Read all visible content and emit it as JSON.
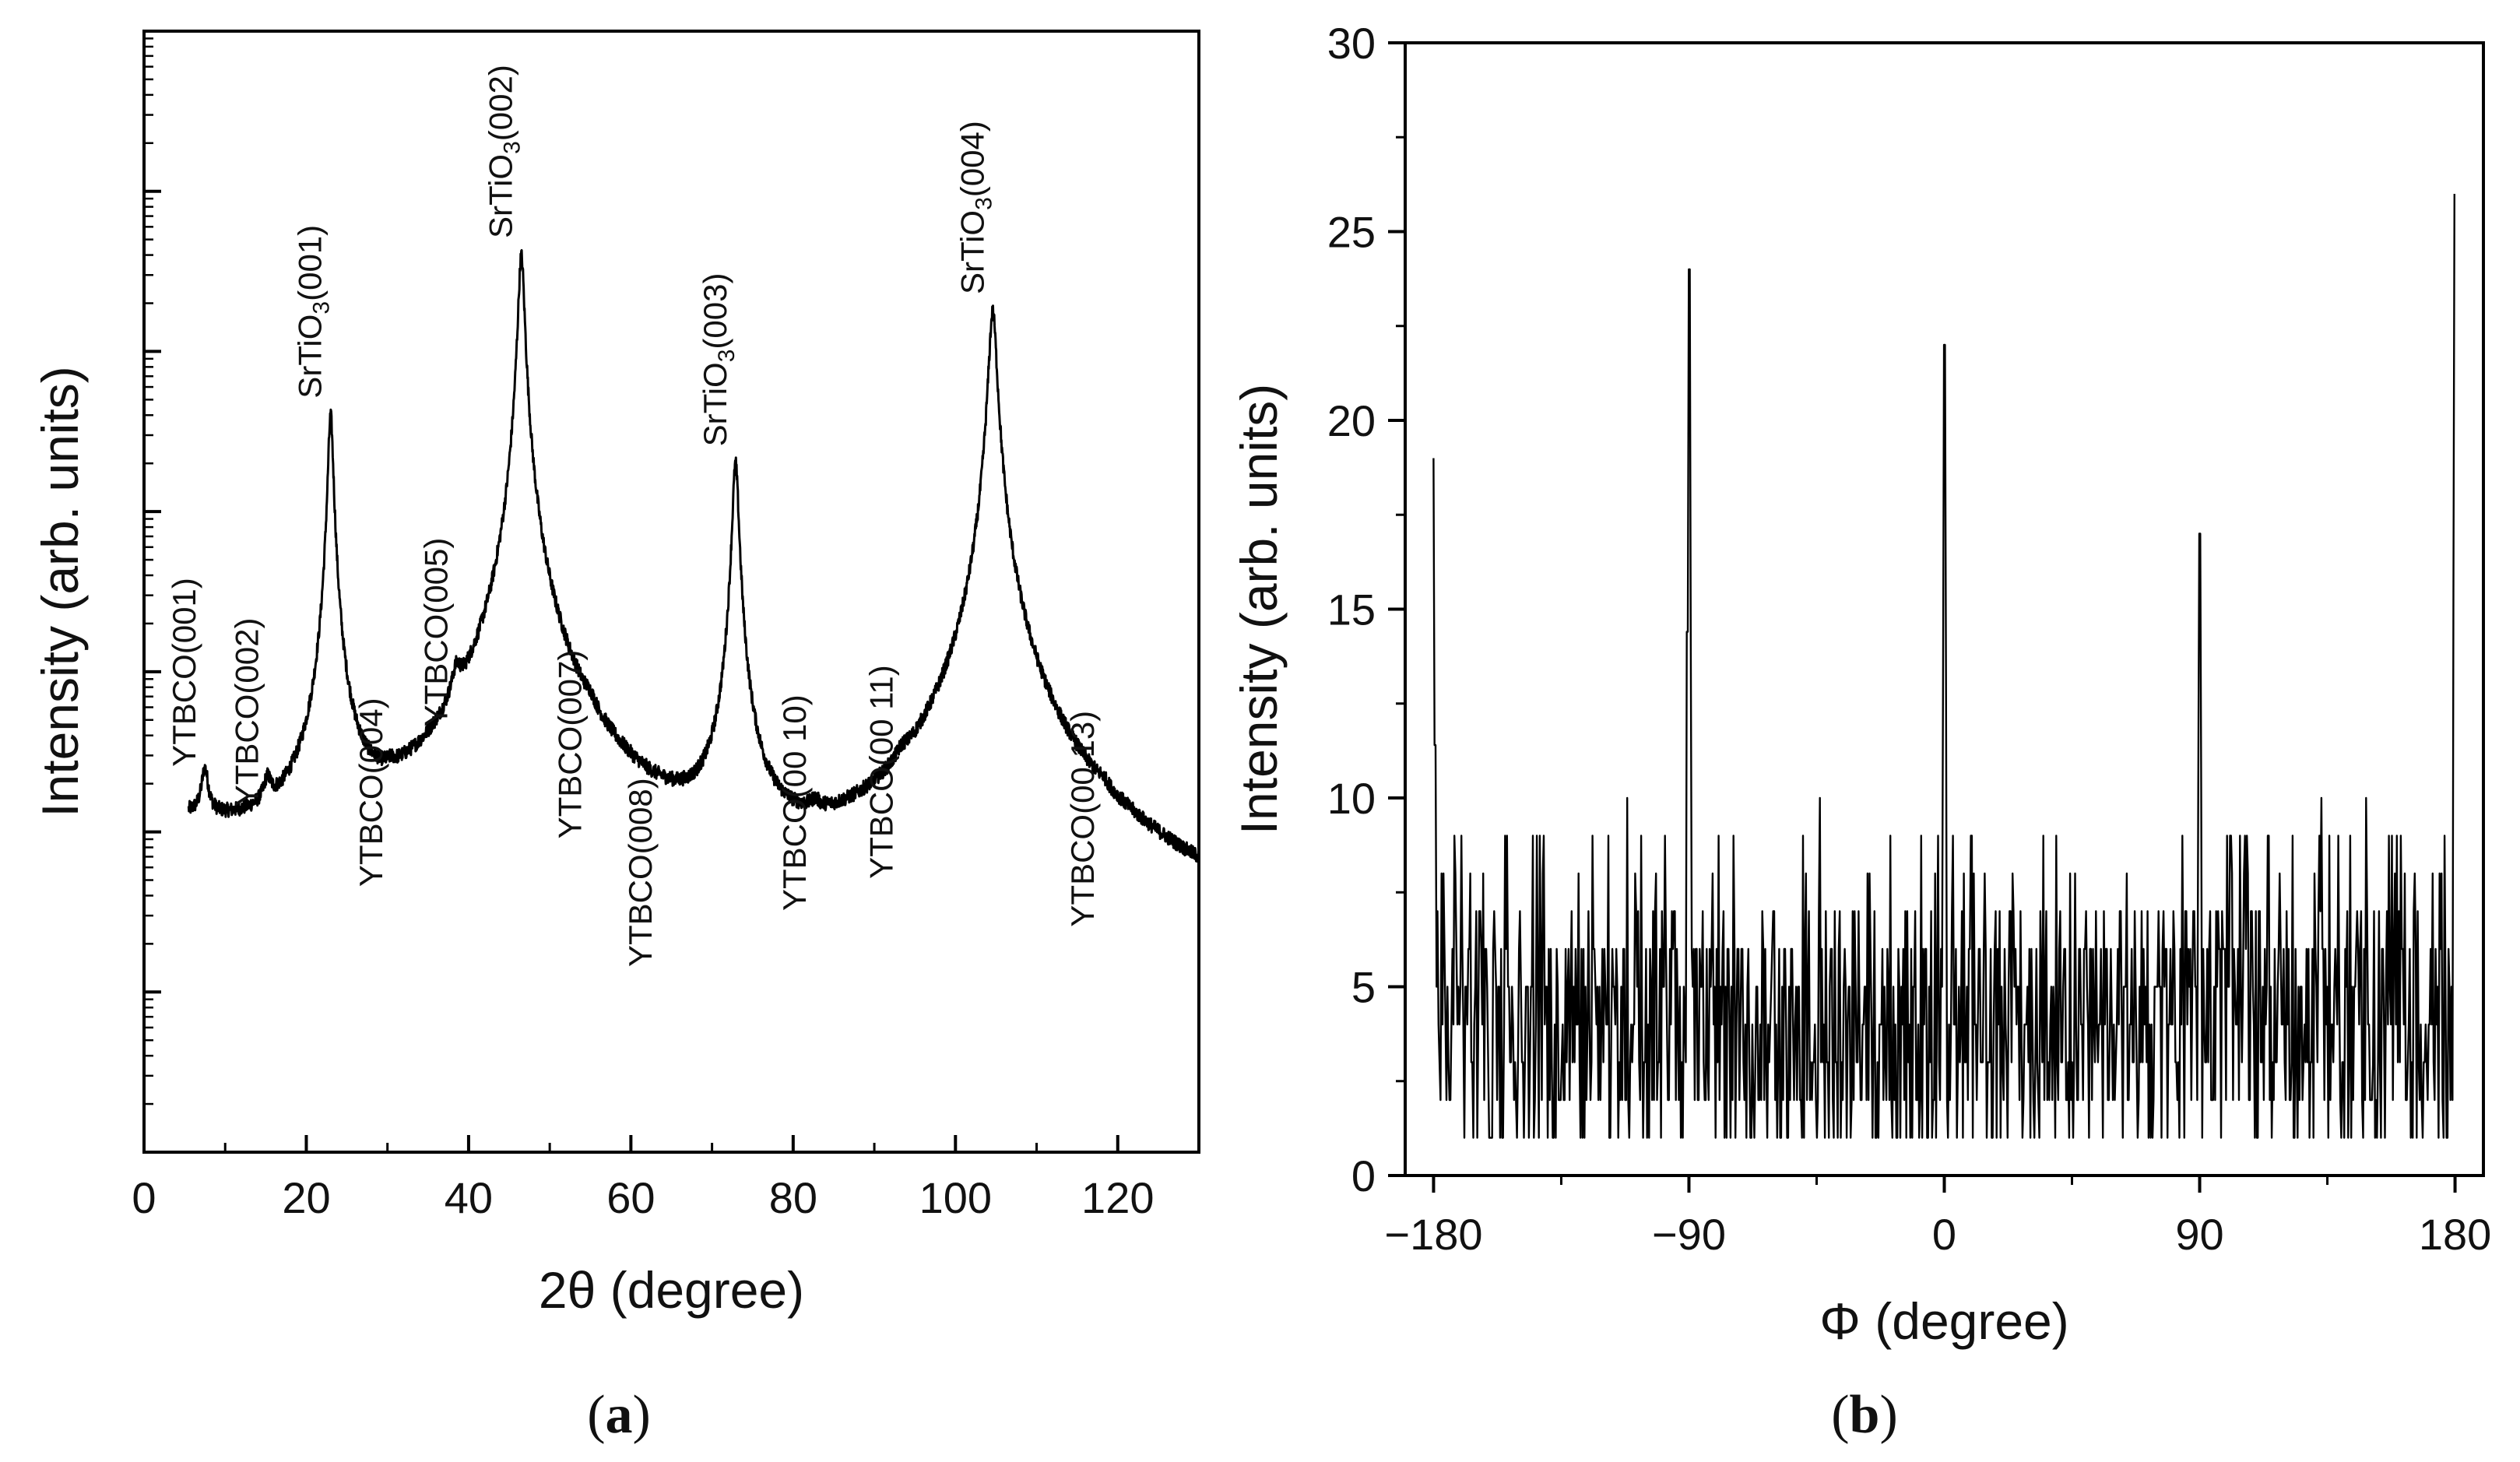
{
  "chart_data": [
    {
      "panel": "(a)",
      "type": "line",
      "xlabel": "2θ (degree)",
      "ylabel": "Intensity (arb. units)",
      "xlim": [
        0,
        130
      ],
      "xticks": [
        0,
        20,
        40,
        60,
        80,
        100,
        120
      ],
      "ylog": true,
      "ylim_decades": [
        0,
        7
      ],
      "y_tick_labels_shown": false,
      "series": [
        {
          "color": "#000000",
          "baseline": [
            [
              5.5,
              1.95
            ],
            [
              8,
              1.9
            ],
            [
              14,
              1.75
            ],
            [
              20,
              1.6
            ],
            [
              26,
              1.45
            ],
            [
              34,
              1.28
            ],
            [
              44,
              1.2
            ],
            [
              52,
              1.05
            ],
            [
              62,
              0.95
            ],
            [
              70,
              0.9
            ],
            [
              80,
              0.88
            ],
            [
              90,
              0.86
            ],
            [
              100,
              0.85
            ],
            [
              110,
              0.82
            ],
            [
              120,
              0.8
            ],
            [
              130,
              0.78
            ]
          ],
          "peaks": [
            {
              "x": 7.5,
              "y": 2.3,
              "w": 0.45
            },
            {
              "x": 15.2,
              "y": 2.05,
              "w": 0.5
            },
            {
              "x": 23.0,
              "y": 4.6,
              "w": 0.3
            },
            {
              "x": 30.5,
              "y": 1.55,
              "w": 0.45
            },
            {
              "x": 38.5,
              "y": 2.55,
              "w": 0.6
            },
            {
              "x": 46.5,
              "y": 5.6,
              "w": 0.35
            },
            {
              "x": 55.0,
              "y": 1.85,
              "w": 0.6
            },
            {
              "x": 63.7,
              "y": 1.05,
              "w": 0.4
            },
            {
              "x": 72.9,
              "y": 4.3,
              "w": 0.35
            },
            {
              "x": 82.7,
              "y": 1.4,
              "w": 0.6
            },
            {
              "x": 93.4,
              "y": 1.6,
              "w": 0.7
            },
            {
              "x": 104.6,
              "y": 5.25,
              "w": 0.45
            },
            {
              "x": 118.2,
              "y": 1.3,
              "w": 0.6
            }
          ]
        }
      ],
      "annotations": [
        {
          "text": "YTBCO(001)",
          "x": 7.5
        },
        {
          "text": "YTBCO(002)",
          "x": 15.2
        },
        {
          "text": "SrTiO",
          "sub": "3",
          "text_after": "(001)",
          "x": 23.0
        },
        {
          "text": "YTBCO(004)",
          "x": 30.5
        },
        {
          "text": "YTBCO(005)",
          "x": 38.5
        },
        {
          "text": "SrTiO",
          "sub": "3",
          "text_after": "(002)",
          "x": 46.5
        },
        {
          "text": "YTBCO(007)",
          "x": 55.0
        },
        {
          "text": "YTBCO(008)",
          "x": 63.7
        },
        {
          "text": "SrTiO",
          "sub": "3",
          "text_after": "(003)",
          "x": 72.9
        },
        {
          "text": "YTBCO(00 10)",
          "x": 82.7
        },
        {
          "text": "YTBCO(00 11)",
          "x": 93.4
        },
        {
          "text": "SrTiO",
          "sub": "3",
          "text_after": "(004)",
          "x": 104.6
        },
        {
          "text": "YTBCO(00 13)",
          "x": 118.2
        }
      ]
    },
    {
      "panel": "(b)",
      "type": "line",
      "xlabel": "Φ (degree)",
      "ylabel": "Intensity (arb. units)",
      "xlim": [
        -190,
        190
      ],
      "xticks": [
        -180,
        -90,
        0,
        90,
        180
      ],
      "xtick_labels": [
        "−180",
        "−90",
        "0",
        "90",
        "180"
      ],
      "ylim": [
        0,
        30
      ],
      "yticks": [
        0,
        5,
        10,
        15,
        20,
        25,
        30
      ],
      "series": [
        {
          "color": "#000000",
          "noise_range": [
            1,
            10
          ],
          "peaks": [
            {
              "x": -180,
              "y": 19
            },
            {
              "x": -90,
              "y": 24
            },
            {
              "x": 0,
              "y": 22
            },
            {
              "x": 90,
              "y": 17
            },
            {
              "x": 180,
              "y": 26
            }
          ]
        }
      ]
    }
  ],
  "captions": {
    "a": {
      "open": "(",
      "letter": "a",
      "close": ")"
    },
    "b": {
      "open": "(",
      "letter": "b",
      "close": ")"
    }
  }
}
